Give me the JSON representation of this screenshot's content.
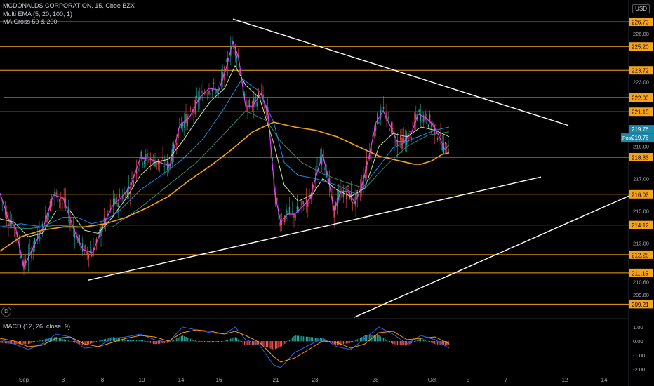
{
  "header": {
    "symbol_line": "MCDONALDS CORPORATION, 15, Cboe BZX",
    "indicator_1": "Multi EMA (5, 20, 100, 1)",
    "indicator_2": "MA Cross 50 & 200",
    "currency": "USD"
  },
  "macd_pane": {
    "label": "MACD (12, 26, close, 9)",
    "badge": "D"
  },
  "colors": {
    "background": "#000000",
    "orange_level": "#f7a21b",
    "trendline": "#ffffff",
    "ema5": "#e040fb",
    "ema20": "#c8e6a0",
    "ema100": "#1e88e5",
    "ma50": "#2e8b6e",
    "ma200": "#f7a21b",
    "candle_up": "#26a69a",
    "candle_down": "#ef5350",
    "macd_line": "#2962ff",
    "signal_line": "#ff9800",
    "price_badge": "#1e88a8"
  },
  "chart_data": [
    {
      "type": "candlestick",
      "title": "MCDONALDS CORPORATION, 15, Cboe BZX",
      "x_tick_labels": [
        "Sep",
        "3",
        "8",
        "10",
        "14",
        "16",
        "21",
        "23",
        "28",
        "Oct",
        "5",
        "7",
        "12",
        "14"
      ],
      "y_tick_labels": [
        "227.00",
        "226.00",
        "225.00",
        "224.00",
        "223.00",
        "222.00",
        "221.00",
        "220.00",
        "219.00",
        "218.00",
        "217.00",
        "216.00",
        "215.00",
        "214.00",
        "213.00",
        "212.00",
        "211.00",
        "210.60",
        "209.80",
        "209.00"
      ],
      "ylim": [
        208.4,
        227.3
      ],
      "price_levels": [
        226.73,
        225.2,
        223.72,
        222.03,
        221.15,
        218.33,
        216.03,
        214.12,
        212.28,
        211.15,
        209.21
      ],
      "price_level_labels": [
        "226.73",
        "225.20",
        "223.72",
        "222.03",
        "221.15",
        "218.33",
        "216.03",
        "214.12",
        "212.28",
        "211.15",
        "209.21"
      ],
      "last_price": "219.76",
      "post_market": {
        "label": "Post",
        "price": "219.76"
      },
      "trendlines": [
        {
          "name": "descending-resistance",
          "from": {
            "date": "Sep 17",
            "price": 226.9
          },
          "to": {
            "date": "Oct 12",
            "price": 220.3
          }
        },
        {
          "name": "ascending-support",
          "from": {
            "date": "Sep 7",
            "price": 210.7
          },
          "to": {
            "date": "Oct 9",
            "price": 217.1
          }
        },
        {
          "name": "lower-ascending-line",
          "from": {
            "date": "Sep 28",
            "price": 208.4
          },
          "to": {
            "date": "Oct 16",
            "price": 216.0
          }
        }
      ],
      "series": [
        {
          "name": "EMA 5",
          "color": "#e040fb",
          "points": [
            [
              0,
              216.1
            ],
            [
              12,
              214.5
            ],
            [
              22,
              214.0
            ],
            [
              34,
              211.5
            ],
            [
              48,
              212.8
            ],
            [
              62,
              214.0
            ],
            [
              76,
              216.0
            ],
            [
              90,
              215.8
            ],
            [
              104,
              214.0
            ],
            [
              118,
              212.6
            ],
            [
              132,
              212.4
            ],
            [
              146,
              214.0
            ],
            [
              160,
              215.3
            ],
            [
              172,
              215.8
            ],
            [
              186,
              216.5
            ],
            [
              200,
              218.3
            ],
            [
              214,
              218.2
            ],
            [
              228,
              218.0
            ],
            [
              242,
              217.8
            ],
            [
              256,
              220.3
            ],
            [
              270,
              220.8
            ],
            [
              284,
              222.0
            ],
            [
              298,
              222.6
            ],
            [
              312,
              222.5
            ],
            [
              322,
              223.8
            ],
            [
              332,
              225.5
            ],
            [
              340,
              224.5
            ],
            [
              350,
              221.5
            ],
            [
              360,
              221.5
            ],
            [
              372,
              222.3
            ],
            [
              382,
              221.0
            ],
            [
              392,
              216.0
            ],
            [
              400,
              214.3
            ],
            [
              410,
              214.8
            ],
            [
              420,
              214.8
            ],
            [
              432,
              215.3
            ],
            [
              442,
              215.8
            ],
            [
              452,
              217.4
            ],
            [
              460,
              218.5
            ],
            [
              468,
              217.0
            ],
            [
              476,
              215.0
            ],
            [
              486,
              216.2
            ],
            [
              496,
              216.2
            ],
            [
              506,
              215.5
            ],
            [
              516,
              216.6
            ],
            [
              526,
              218.4
            ],
            [
              536,
              220.5
            ],
            [
              546,
              221.2
            ],
            [
              556,
              220.3
            ],
            [
              566,
              219.3
            ],
            [
              576,
              219.3
            ],
            [
              586,
              219.8
            ],
            [
              596,
              221.0
            ],
            [
              606,
              220.8
            ],
            [
              616,
              220.4
            ],
            [
              626,
              219.6
            ],
            [
              634,
              218.8
            ],
            [
              640,
              219.1
            ]
          ]
        },
        {
          "name": "EMA 20",
          "color": "#c8e6a0",
          "points": [
            [
              0,
              214.5
            ],
            [
              20,
              214.3
            ],
            [
              40,
              213.4
            ],
            [
              60,
              213.6
            ],
            [
              80,
              215.0
            ],
            [
              100,
              215.0
            ],
            [
              120,
              213.8
            ],
            [
              140,
              213.6
            ],
            [
              160,
              214.6
            ],
            [
              180,
              215.8
            ],
            [
              200,
              217.2
            ],
            [
              220,
              218.0
            ],
            [
              240,
              218.2
            ],
            [
              260,
              219.3
            ],
            [
              280,
              220.6
            ],
            [
              300,
              221.8
            ],
            [
              320,
              222.6
            ],
            [
              335,
              224.0
            ],
            [
              350,
              222.8
            ],
            [
              370,
              222.0
            ],
            [
              390,
              219.2
            ],
            [
              405,
              216.6
            ],
            [
              425,
              215.6
            ],
            [
              445,
              216.0
            ],
            [
              460,
              217.0
            ],
            [
              480,
              216.3
            ],
            [
              500,
              215.9
            ],
            [
              520,
              216.4
            ],
            [
              540,
              219.0
            ],
            [
              560,
              219.8
            ],
            [
              580,
              219.6
            ],
            [
              600,
              220.2
            ],
            [
              620,
              220.0
            ],
            [
              640,
              219.6
            ]
          ]
        },
        {
          "name": "EMA 100",
          "color": "#1e88e5",
          "points": [
            [
              0,
              214.0
            ],
            [
              30,
              214.2
            ],
            [
              60,
              214.0
            ],
            [
              90,
              214.6
            ],
            [
              110,
              214.6
            ],
            [
              130,
              214.2
            ],
            [
              150,
              214.4
            ],
            [
              170,
              215.0
            ],
            [
              200,
              216.3
            ],
            [
              230,
              217.2
            ],
            [
              260,
              218.2
            ],
            [
              290,
              219.5
            ],
            [
              320,
              221.4
            ],
            [
              345,
              223.2
            ],
            [
              370,
              222.4
            ],
            [
              390,
              220.5
            ],
            [
              405,
              218.0
            ],
            [
              425,
              217.2
            ],
            [
              450,
              217.0
            ],
            [
              480,
              216.6
            ],
            [
              510,
              216.0
            ],
            [
              530,
              217.2
            ],
            [
              560,
              218.9
            ],
            [
              590,
              219.5
            ],
            [
              620,
              220.0
            ],
            [
              640,
              220.2
            ]
          ]
        },
        {
          "name": "MA 50",
          "color": "#2e8b6e",
          "points": [
            [
              0,
              214.0
            ],
            [
              40,
              213.9
            ],
            [
              80,
              214.1
            ],
            [
              120,
              214.0
            ],
            [
              160,
              214.0
            ],
            [
              200,
              215.2
            ],
            [
              240,
              216.6
            ],
            [
              280,
              218.0
            ],
            [
              320,
              219.8
            ],
            [
              350,
              221.2
            ],
            [
              380,
              220.6
            ],
            [
              400,
              219.3
            ],
            [
              430,
              218.0
            ],
            [
              460,
              217.3
            ],
            [
              490,
              216.8
            ],
            [
              520,
              216.4
            ],
            [
              550,
              217.8
            ],
            [
              580,
              219.0
            ],
            [
              610,
              219.7
            ],
            [
              640,
              219.9
            ]
          ]
        },
        {
          "name": "MA 200",
          "color": "#f7a21b",
          "points": [
            [
              0,
              212.5
            ],
            [
              30,
              213.4
            ],
            [
              60,
              213.8
            ],
            [
              90,
              214.0
            ],
            [
              120,
              214.0
            ],
            [
              150,
              214.2
            ],
            [
              180,
              214.6
            ],
            [
              210,
              215.2
            ],
            [
              240,
              215.9
            ],
            [
              270,
              216.9
            ],
            [
              300,
              217.8
            ],
            [
              330,
              218.8
            ],
            [
              360,
              219.9
            ],
            [
              390,
              220.5
            ],
            [
              420,
              220.2
            ],
            [
              450,
              220.0
            ],
            [
              480,
              219.6
            ],
            [
              510,
              219.0
            ],
            [
              540,
              218.4
            ],
            [
              570,
              218.1
            ],
            [
              590,
              217.9
            ],
            [
              600,
              217.9
            ],
            [
              615,
              218.1
            ],
            [
              630,
              218.5
            ],
            [
              640,
              218.6
            ]
          ]
        }
      ]
    },
    {
      "type": "line",
      "title": "MACD (12, 26, close, 9)",
      "y_tick_labels": [
        "1.00",
        "0.00",
        "-1.00",
        "-2.00"
      ],
      "ylim": [
        -2.3,
        1.4
      ],
      "series": [
        {
          "name": "MACD",
          "color": "#2962ff",
          "points": [
            [
              0,
              0.1
            ],
            [
              20,
              -0.2
            ],
            [
              40,
              -0.6
            ],
            [
              60,
              -0.2
            ],
            [
              80,
              0.5
            ],
            [
              100,
              0.3
            ],
            [
              120,
              -0.5
            ],
            [
              140,
              -0.4
            ],
            [
              160,
              0.2
            ],
            [
              180,
              0.3
            ],
            [
              200,
              0.5
            ],
            [
              220,
              0.1
            ],
            [
              240,
              -0.1
            ],
            [
              260,
              1.0
            ],
            [
              280,
              0.8
            ],
            [
              300,
              0.6
            ],
            [
              320,
              0.5
            ],
            [
              335,
              1.0
            ],
            [
              350,
              0.1
            ],
            [
              370,
              -0.3
            ],
            [
              390,
              -1.7
            ],
            [
              400,
              -1.9
            ],
            [
              420,
              -0.8
            ],
            [
              440,
              -0.3
            ],
            [
              460,
              0.2
            ],
            [
              480,
              -0.4
            ],
            [
              500,
              -0.6
            ],
            [
              520,
              0.2
            ],
            [
              540,
              1.0
            ],
            [
              560,
              0.5
            ],
            [
              580,
              -0.2
            ],
            [
              600,
              0.4
            ],
            [
              620,
              0.1
            ],
            [
              640,
              -0.5
            ]
          ]
        },
        {
          "name": "Signal",
          "color": "#ff9800",
          "points": [
            [
              0,
              0.2
            ],
            [
              20,
              0.0
            ],
            [
              40,
              -0.4
            ],
            [
              60,
              -0.3
            ],
            [
              80,
              0.2
            ],
            [
              100,
              0.3
            ],
            [
              120,
              -0.2
            ],
            [
              140,
              -0.4
            ],
            [
              160,
              -0.1
            ],
            [
              180,
              0.2
            ],
            [
              200,
              0.4
            ],
            [
              220,
              0.3
            ],
            [
              240,
              0.0
            ],
            [
              260,
              0.6
            ],
            [
              280,
              0.8
            ],
            [
              300,
              0.7
            ],
            [
              320,
              0.5
            ],
            [
              335,
              0.7
            ],
            [
              350,
              0.4
            ],
            [
              370,
              -0.1
            ],
            [
              390,
              -1.1
            ],
            [
              400,
              -1.5
            ],
            [
              420,
              -1.2
            ],
            [
              440,
              -0.6
            ],
            [
              460,
              0.0
            ],
            [
              480,
              -0.1
            ],
            [
              500,
              -0.5
            ],
            [
              520,
              -0.2
            ],
            [
              540,
              0.6
            ],
            [
              560,
              0.7
            ],
            [
              580,
              0.1
            ],
            [
              600,
              0.2
            ],
            [
              620,
              0.3
            ],
            [
              640,
              -0.2
            ]
          ]
        }
      ]
    }
  ]
}
